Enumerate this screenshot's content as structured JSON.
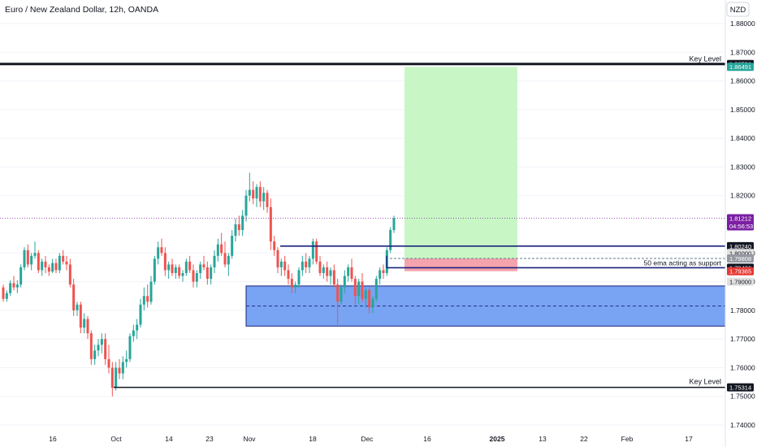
{
  "header": {
    "title": "Euro / New Zealand Dollar, 12h, OANDA",
    "currency": "NZD"
  },
  "chart_data": {
    "type": "candlestick",
    "title": "Euro / New Zealand Dollar, 12h, OANDA",
    "ylim": [
      1.7385,
      1.8915
    ],
    "yticks": [
      "1.88000",
      "1.87000",
      "1.86000",
      "1.85000",
      "1.84000",
      "1.83000",
      "1.82000",
      "1.80000",
      "1.79000",
      "1.78000",
      "1.77000",
      "1.76000",
      "1.75000",
      "1.74000"
    ],
    "xticks": [
      "16",
      "Oct",
      "14",
      "23",
      "Nov",
      "18",
      "Dec",
      "16",
      "2025",
      "13",
      "22",
      "Feb",
      "17"
    ],
    "candles": [
      [
        1.788,
        1.789,
        1.783,
        1.784
      ],
      [
        1.784,
        1.787,
        1.783,
        1.786
      ],
      [
        1.786,
        1.7905,
        1.785,
        1.7895
      ],
      [
        1.7895,
        1.792,
        1.787,
        1.788
      ],
      [
        1.788,
        1.7905,
        1.786,
        1.789
      ],
      [
        1.789,
        1.796,
        1.788,
        1.795
      ],
      [
        1.795,
        1.802,
        1.794,
        1.801
      ],
      [
        1.801,
        1.803,
        1.795,
        1.796
      ],
      [
        1.796,
        1.8,
        1.794,
        1.799
      ],
      [
        1.799,
        1.804,
        1.798,
        1.8
      ],
      [
        1.8,
        1.801,
        1.793,
        1.794
      ],
      [
        1.794,
        1.798,
        1.792,
        1.797
      ],
      [
        1.797,
        1.799,
        1.793,
        1.795
      ],
      [
        1.795,
        1.796,
        1.792,
        1.7935
      ],
      [
        1.7935,
        1.798,
        1.793,
        1.7965
      ],
      [
        1.7965,
        1.798,
        1.793,
        1.794
      ],
      [
        1.794,
        1.8,
        1.793,
        1.799
      ],
      [
        1.799,
        1.801,
        1.796,
        1.797
      ],
      [
        1.797,
        1.799,
        1.794,
        1.796
      ],
      [
        1.796,
        1.798,
        1.788,
        1.789
      ],
      [
        1.789,
        1.791,
        1.778,
        1.78
      ],
      [
        1.78,
        1.783,
        1.778,
        1.782
      ],
      [
        1.782,
        1.783,
        1.772,
        1.774
      ],
      [
        1.774,
        1.779,
        1.772,
        1.777
      ],
      [
        1.777,
        1.778,
        1.77,
        1.772
      ],
      [
        1.772,
        1.773,
        1.761,
        1.763
      ],
      [
        1.763,
        1.768,
        1.761,
        1.766
      ],
      [
        1.766,
        1.77,
        1.764,
        1.768
      ],
      [
        1.768,
        1.772,
        1.765,
        1.77
      ],
      [
        1.77,
        1.772,
        1.761,
        1.763
      ],
      [
        1.763,
        1.768,
        1.758,
        1.76
      ],
      [
        1.76,
        1.762,
        1.75,
        1.753
      ],
      [
        1.753,
        1.762,
        1.752,
        1.76
      ],
      [
        1.76,
        1.763,
        1.756,
        1.758
      ],
      [
        1.758,
        1.764,
        1.756,
        1.762
      ],
      [
        1.762,
        1.766,
        1.76,
        1.763
      ],
      [
        1.763,
        1.772,
        1.762,
        1.771
      ],
      [
        1.771,
        1.775,
        1.769,
        1.773
      ],
      [
        1.773,
        1.777,
        1.77,
        1.775
      ],
      [
        1.775,
        1.784,
        1.774,
        1.782
      ],
      [
        1.782,
        1.788,
        1.78,
        1.785
      ],
      [
        1.785,
        1.789,
        1.781,
        1.783
      ],
      [
        1.783,
        1.792,
        1.782,
        1.79
      ],
      [
        1.79,
        1.799,
        1.789,
        1.798
      ],
      [
        1.798,
        1.804,
        1.796,
        1.802
      ],
      [
        1.802,
        1.805,
        1.799,
        1.8
      ],
      [
        1.8,
        1.802,
        1.792,
        1.794
      ],
      [
        1.794,
        1.797,
        1.791,
        1.796
      ],
      [
        1.796,
        1.798,
        1.792,
        1.793
      ],
      [
        1.793,
        1.796,
        1.791,
        1.795
      ],
      [
        1.795,
        1.796,
        1.791,
        1.792
      ],
      [
        1.792,
        1.794,
        1.79,
        1.793
      ],
      [
        1.793,
        1.798,
        1.792,
        1.797
      ],
      [
        1.797,
        1.799,
        1.793,
        1.794
      ],
      [
        1.794,
        1.796,
        1.788,
        1.79
      ],
      [
        1.79,
        1.794,
        1.788,
        1.793
      ],
      [
        1.793,
        1.797,
        1.791,
        1.796
      ],
      [
        1.796,
        1.799,
        1.794,
        1.795
      ],
      [
        1.795,
        1.797,
        1.789,
        1.791
      ],
      [
        1.791,
        1.796,
        1.789,
        1.795
      ],
      [
        1.795,
        1.801,
        1.793,
        1.799
      ],
      [
        1.799,
        1.805,
        1.797,
        1.803
      ],
      [
        1.803,
        1.807,
        1.799,
        1.8
      ],
      [
        1.8,
        1.804,
        1.795,
        1.796
      ],
      [
        1.796,
        1.8,
        1.792,
        1.799
      ],
      [
        1.799,
        1.808,
        1.798,
        1.806
      ],
      [
        1.806,
        1.812,
        1.804,
        1.81
      ],
      [
        1.81,
        1.813,
        1.806,
        1.808
      ],
      [
        1.808,
        1.815,
        1.806,
        1.813
      ],
      [
        1.813,
        1.822,
        1.811,
        1.82
      ],
      [
        1.82,
        1.828,
        1.818,
        1.822
      ],
      [
        1.822,
        1.825,
        1.817,
        1.819
      ],
      [
        1.819,
        1.824,
        1.816,
        1.823
      ],
      [
        1.823,
        1.825,
        1.816,
        1.818
      ],
      [
        1.818,
        1.823,
        1.815,
        1.821
      ],
      [
        1.821,
        1.822,
        1.814,
        1.816
      ],
      [
        1.816,
        1.819,
        1.801,
        1.804
      ],
      [
        1.804,
        1.806,
        1.799,
        1.801
      ],
      [
        1.801,
        1.802,
        1.793,
        1.795
      ],
      [
        1.795,
        1.798,
        1.792,
        1.797
      ],
      [
        1.797,
        1.799,
        1.792,
        1.794
      ],
      [
        1.794,
        1.796,
        1.789,
        1.791
      ],
      [
        1.791,
        1.793,
        1.786,
        1.788
      ],
      [
        1.788,
        1.79,
        1.786,
        1.789
      ],
      [
        1.789,
        1.795,
        1.788,
        1.794
      ],
      [
        1.794,
        1.799,
        1.792,
        1.797
      ],
      [
        1.797,
        1.8,
        1.793,
        1.795
      ],
      [
        1.795,
        1.799,
        1.793,
        1.798
      ],
      [
        1.798,
        1.805,
        1.796,
        1.804
      ],
      [
        1.804,
        1.805,
        1.796,
        1.797
      ],
      [
        1.797,
        1.799,
        1.792,
        1.793
      ],
      [
        1.793,
        1.796,
        1.791,
        1.795
      ],
      [
        1.795,
        1.797,
        1.79,
        1.792
      ],
      [
        1.792,
        1.795,
        1.789,
        1.794
      ],
      [
        1.794,
        1.796,
        1.788,
        1.789
      ],
      [
        1.789,
        1.791,
        1.775,
        1.783
      ],
      [
        1.783,
        1.789,
        1.782,
        1.788
      ],
      [
        1.788,
        1.794,
        1.786,
        1.792
      ],
      [
        1.792,
        1.796,
        1.79,
        1.795
      ],
      [
        1.795,
        1.798,
        1.79,
        1.791
      ],
      [
        1.791,
        1.792,
        1.782,
        1.785
      ],
      [
        1.785,
        1.791,
        1.782,
        1.79
      ],
      [
        1.79,
        1.793,
        1.783,
        1.784
      ],
      [
        1.784,
        1.788,
        1.781,
        1.787
      ],
      [
        1.787,
        1.788,
        1.779,
        1.781
      ],
      [
        1.781,
        1.785,
        1.779,
        1.784
      ],
      [
        1.784,
        1.792,
        1.783,
        1.791
      ],
      [
        1.791,
        1.795,
        1.789,
        1.794
      ],
      [
        1.794,
        1.796,
        1.791,
        1.793
      ],
      [
        1.793,
        1.802,
        1.792,
        1.801
      ],
      [
        1.801,
        1.809,
        1.8,
        1.808
      ],
      [
        1.808,
        1.813,
        1.807,
        1.8121
      ]
    ],
    "levels": [
      {
        "label": "Key Level",
        "price": 1.86591
      },
      {
        "label": "Key Level",
        "price": 1.75314
      }
    ],
    "ema_label": "50 ema acting as support",
    "price_tags": [
      {
        "text": "1.86591",
        "price": 1.86591,
        "bg": "#131722",
        "color": "#ffffff"
      },
      {
        "text": "1.86491",
        "price": 1.86491,
        "bg": "#26a69a",
        "color": "#ffffff"
      },
      {
        "text": "1.81212",
        "sub": "04:56:53",
        "price": 1.81212,
        "bg": "#7b1fa2",
        "color": "#ffffff"
      },
      {
        "text": "1.80240",
        "price": 1.8024,
        "bg": "#131722",
        "color": "#ffffff"
      },
      {
        "text": "1.80000",
        "price": 1.8,
        "bg": "#e0e0e0",
        "color": "#131722"
      },
      {
        "text": "1.79808",
        "price": 1.79808,
        "bg": "#9598a1",
        "color": "#ffffff"
      },
      {
        "text": "1.79486",
        "price": 1.79486,
        "bg": "#131722",
        "color": "#ffffff"
      },
      {
        "text": "1.79365",
        "price": 1.79365,
        "bg": "#e53935",
        "color": "#ffffff"
      },
      {
        "text": "1.79000",
        "price": 1.79,
        "bg": "#e0e0e0",
        "color": "#131722"
      },
      {
        "text": "1.75314",
        "price": 1.75314,
        "bg": "#131722",
        "color": "#ffffff"
      }
    ],
    "long_position": {
      "entry": 1.79808,
      "target": 1.86491,
      "stop": 1.79365
    },
    "demand_zone": {
      "top": 1.7885,
      "bottom": 1.7745
    },
    "resistance_line": 1.8024,
    "support_line": 1.79486,
    "current_price": 1.81212
  },
  "colors": {
    "up": "#26a69a",
    "down": "#ef5350",
    "line": "#131722",
    "zone_fill": "#5b8ff0",
    "zone_border": "#1a237e",
    "profit": "#c8f7c5",
    "loss": "#f5a3ad"
  }
}
